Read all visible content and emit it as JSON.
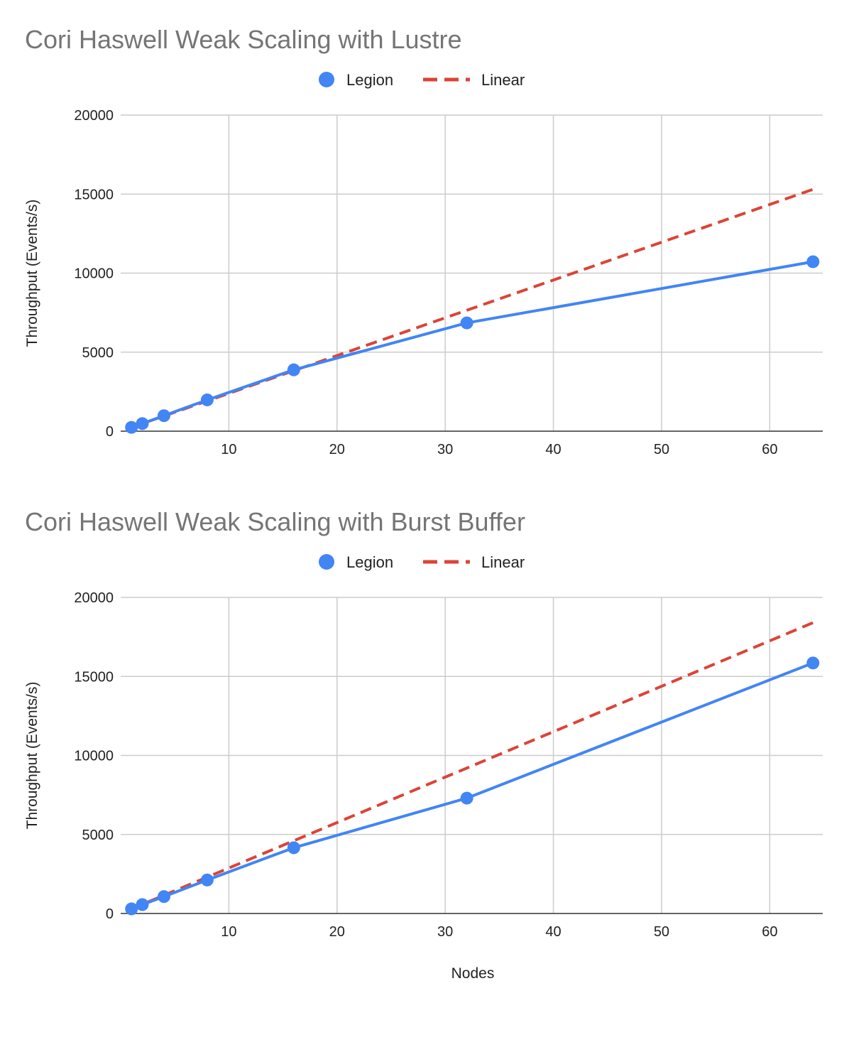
{
  "colors": {
    "legion": "#4285F4",
    "linear": "#DB4437",
    "title": "#757575",
    "grid": "#cccccc"
  },
  "xlabel": "Nodes",
  "chart_data": [
    {
      "type": "line",
      "title": "Cori Haswell Weak Scaling with Lustre",
      "ylabel": "Throughput (Events/s)",
      "xlim": [
        0,
        64.9
      ],
      "ylim": [
        0,
        20000
      ],
      "xticks": [
        10,
        20,
        30,
        40,
        50,
        60
      ],
      "yticks": [
        0,
        5000,
        10000,
        15000,
        20000
      ],
      "legend": "top-center",
      "grid": true,
      "series": [
        {
          "name": "Legion",
          "style": "solid-markers",
          "x": [
            1,
            2,
            4,
            8,
            16,
            32,
            64
          ],
          "y": [
            240,
            480,
            980,
            1980,
            3880,
            6850,
            10720
          ]
        },
        {
          "name": "Linear",
          "style": "dashed",
          "x": [
            1,
            64
          ],
          "y": [
            240,
            15300
          ]
        }
      ]
    },
    {
      "type": "line",
      "title": "Cori Haswell Weak Scaling with Burst Buffer",
      "ylabel": "Throughput (Events/s)",
      "xlim": [
        0,
        64.9
      ],
      "ylim": [
        0,
        20000
      ],
      "xticks": [
        10,
        20,
        30,
        40,
        50,
        60
      ],
      "yticks": [
        0,
        5000,
        10000,
        15000,
        20000
      ],
      "legend": "top-center",
      "grid": true,
      "series": [
        {
          "name": "Legion",
          "style": "solid-markers",
          "x": [
            1,
            2,
            4,
            8,
            16,
            32,
            64
          ],
          "y": [
            290,
            560,
            1070,
            2120,
            4160,
            7300,
            15850
          ]
        },
        {
          "name": "Linear",
          "style": "dashed",
          "x": [
            1,
            64
          ],
          "y": [
            290,
            18400
          ]
        }
      ]
    }
  ]
}
